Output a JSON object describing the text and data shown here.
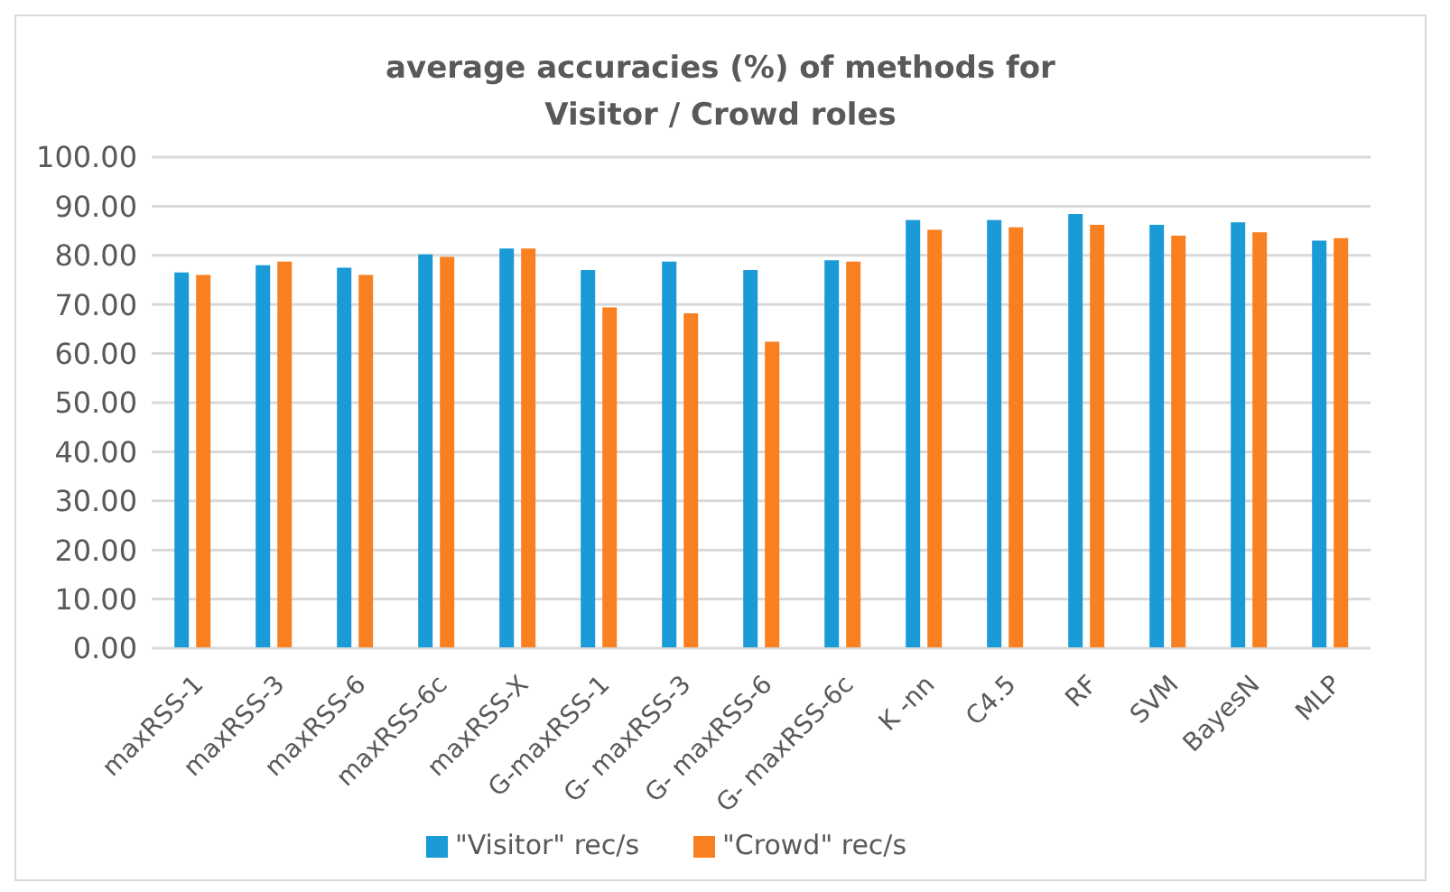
{
  "chart_data": {
    "type": "bar",
    "title": "average accuracies (%) of methods for Visitor / Crowd roles",
    "categories": [
      "maxRSS-1",
      "maxRSS-3",
      "maxRSS-6",
      "maxRSS-6c",
      "maxRSS-X",
      "G-maxRSS-1",
      "G- maxRSS-3",
      "G- maxRSS-6",
      "G- maxRSS-6c",
      "K -nn",
      "C4.5",
      "RF",
      "SVM",
      "BayesN",
      "MLP"
    ],
    "series": [
      {
        "name": "\"Visitor\" rec/s",
        "color": "#1a9ad6",
        "values": [
          76.5,
          78.0,
          77.5,
          80.2,
          81.4,
          77.0,
          78.7,
          77.0,
          79.0,
          87.2,
          87.2,
          88.4,
          86.2,
          86.7,
          83.0
        ]
      },
      {
        "name": "\"Crowd\" rec/s",
        "color": "#f98020",
        "values": [
          76.0,
          78.7,
          76.0,
          79.7,
          81.4,
          69.4,
          68.2,
          62.4,
          78.7,
          85.2,
          85.7,
          86.2,
          84.0,
          84.7,
          83.5
        ]
      }
    ],
    "ylim": [
      0,
      100
    ],
    "yticks": [
      {
        "value": 0,
        "label": "0.00"
      },
      {
        "value": 10,
        "label": "10.00"
      },
      {
        "value": 20,
        "label": "20.00"
      },
      {
        "value": 30,
        "label": "30.00"
      },
      {
        "value": 40,
        "label": "40.00"
      },
      {
        "value": 50,
        "label": "50.00"
      },
      {
        "value": 60,
        "label": "60.00"
      },
      {
        "value": 70,
        "label": "70.00"
      },
      {
        "value": 80,
        "label": "80.00"
      },
      {
        "value": 90,
        "label": "90.00"
      },
      {
        "value": 100,
        "label": "100.00"
      }
    ],
    "grid": "y",
    "legend": "bottom"
  }
}
